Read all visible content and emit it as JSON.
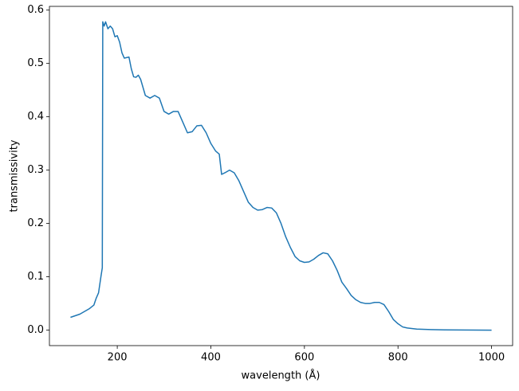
{
  "chart_data": {
    "type": "line",
    "x_label": "wavelength (Å)",
    "y_label": "transmissivity",
    "x": [
      100,
      120,
      140,
      150,
      155,
      160,
      165,
      168,
      169,
      172,
      175,
      180,
      185,
      190,
      195,
      200,
      205,
      210,
      215,
      225,
      230,
      235,
      240,
      245,
      250,
      260,
      270,
      280,
      290,
      300,
      310,
      320,
      330,
      340,
      350,
      360,
      370,
      380,
      390,
      400,
      410,
      418,
      423,
      430,
      440,
      450,
      460,
      470,
      480,
      490,
      500,
      510,
      520,
      530,
      540,
      550,
      560,
      570,
      580,
      590,
      600,
      610,
      620,
      630,
      640,
      650,
      660,
      670,
      680,
      690,
      700,
      710,
      720,
      730,
      740,
      750,
      760,
      770,
      780,
      790,
      800,
      810,
      820,
      840,
      870,
      900,
      1000
    ],
    "series": [
      {
        "name": "transmissivity",
        "color": "#1f77b4",
        "values": [
          0.024,
          0.03,
          0.04,
          0.047,
          0.06,
          0.07,
          0.1,
          0.117,
          0.578,
          0.57,
          0.578,
          0.565,
          0.57,
          0.565,
          0.55,
          0.552,
          0.54,
          0.52,
          0.51,
          0.512,
          0.49,
          0.475,
          0.474,
          0.478,
          0.47,
          0.44,
          0.435,
          0.44,
          0.435,
          0.41,
          0.405,
          0.41,
          0.41,
          0.39,
          0.37,
          0.372,
          0.383,
          0.384,
          0.37,
          0.35,
          0.336,
          0.33,
          0.292,
          0.295,
          0.3,
          0.295,
          0.28,
          0.26,
          0.24,
          0.23,
          0.225,
          0.226,
          0.23,
          0.229,
          0.22,
          0.2,
          0.175,
          0.155,
          0.138,
          0.13,
          0.127,
          0.128,
          0.133,
          0.14,
          0.145,
          0.143,
          0.13,
          0.112,
          0.09,
          0.078,
          0.065,
          0.057,
          0.052,
          0.05,
          0.05,
          0.052,
          0.052,
          0.048,
          0.035,
          0.02,
          0.012,
          0.006,
          0.004,
          0.002,
          0.001,
          0.0005,
          0
        ]
      }
    ],
    "xlim": [
      55,
      1045
    ],
    "xticks": [
      200,
      400,
      600,
      800,
      1000
    ],
    "ylim": [
      -0.029,
      0.607
    ],
    "yticks": [
      {
        "value": 0,
        "label": "0.0"
      },
      0.1,
      0.2,
      0.3,
      0.4,
      0.5,
      0.6
    ],
    "grid": false
  }
}
